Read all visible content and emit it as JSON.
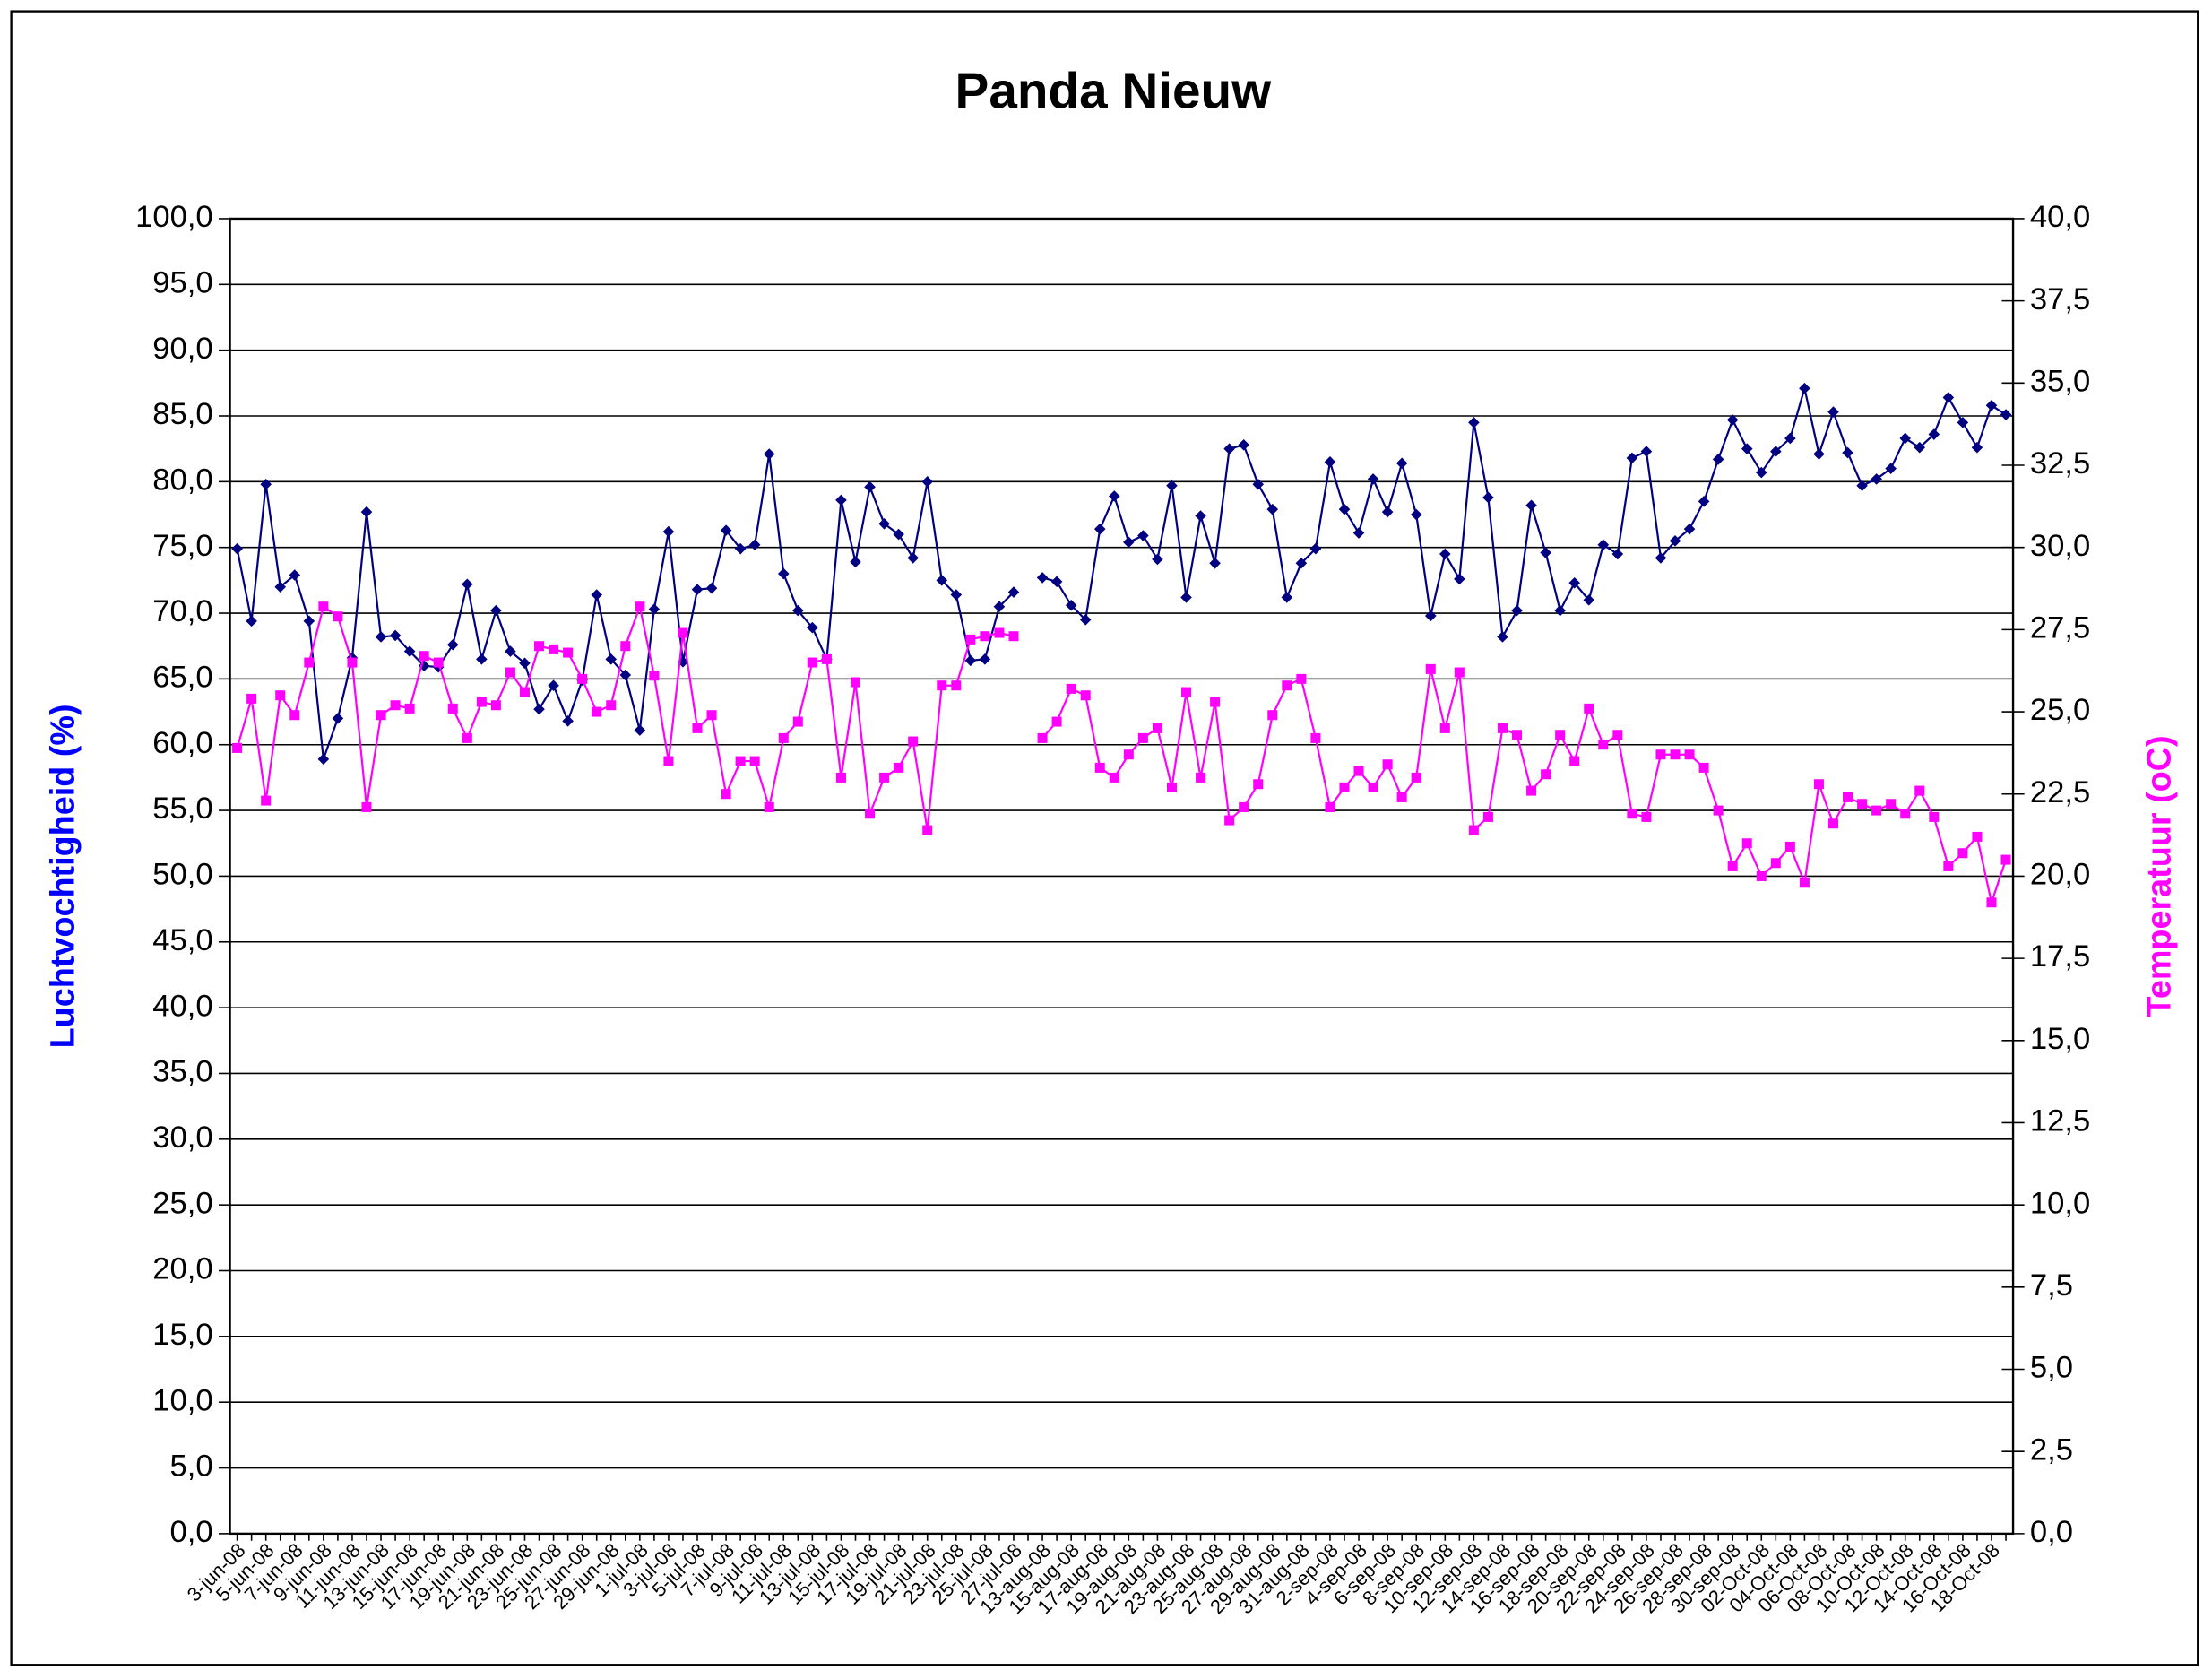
{
  "chart_data": {
    "type": "line",
    "title": "Panda Nieuw",
    "y_label": "Luchtvochtigheid (%)",
    "y2_label": "Temperatuur (oC)",
    "categories": [
      "3-jun-08",
      null,
      "5-jun-08",
      null,
      "7-jun-08",
      null,
      "9-jun-08",
      null,
      "11-jun-08",
      null,
      "13-jun-08",
      null,
      "15-jun-08",
      null,
      "17-jun-08",
      null,
      "19-jun-08",
      null,
      "21-jun-08",
      null,
      "23-jun-08",
      null,
      "25-jun-08",
      null,
      "27-jun-08",
      null,
      "29-jun-08",
      null,
      "1-jul-08",
      null,
      "3-jul-08",
      null,
      "5-jul-08",
      null,
      "7-jul-08",
      null,
      "9-jul-08",
      null,
      "11-jul-08",
      null,
      "13-jul-08",
      null,
      "15-jul-08",
      null,
      "17-jul-08",
      null,
      "19-jul-08",
      null,
      "21-jul-08",
      null,
      "23-jul-08",
      null,
      "25-jul-08",
      null,
      "27-jul-08",
      null,
      "13-aug-08",
      null,
      "15-aug-08",
      null,
      "17-aug-08",
      null,
      "19-aug-08",
      null,
      "21-aug-08",
      null,
      "23-aug-08",
      null,
      "25-aug-08",
      null,
      "27-aug-08",
      null,
      "29-aug-08",
      null,
      "31-aug-08",
      null,
      "2-sep-08",
      null,
      "4-sep-08",
      null,
      "6-sep-08",
      null,
      "8-sep-08",
      null,
      "10-sep-08",
      null,
      "12-sep-08",
      null,
      "14-sep-08",
      null,
      "16-sep-08",
      null,
      "18-sep-08",
      null,
      "20-sep-08",
      null,
      "22-sep-08",
      null,
      "24-sep-08",
      null,
      "26-sep-08",
      null,
      "28-sep-08",
      null,
      "30-sep-08",
      null,
      "02-Oct-08",
      null,
      "04-Oct-08",
      null,
      "06-Oct-08",
      null,
      "08-Oct-08",
      null,
      "10-Oct-08",
      null,
      "12-Oct-08",
      null,
      "14-Oct-08",
      null,
      "16-Oct-08",
      null,
      "18-Oct-08",
      null
    ],
    "series": [
      {
        "color": "#000080",
        "marker": "diamond",
        "values": [
          74.9,
          69.4,
          79.8,
          72.0,
          72.9,
          69.4,
          58.9,
          62.0,
          66.6,
          77.7,
          68.2,
          68.3,
          67.1,
          66.0,
          65.9,
          67.6,
          72.2,
          66.5,
          70.2,
          67.1,
          66.2,
          62.7,
          64.5,
          61.8,
          64.9,
          71.4,
          66.5,
          65.3,
          61.1,
          70.3,
          76.2,
          66.3,
          71.8,
          71.9,
          76.3,
          74.9,
          75.2,
          82.1,
          73.0,
          70.2,
          68.9,
          66.5,
          78.6,
          73.9,
          79.6,
          76.8,
          76.0,
          74.2,
          80.0,
          72.5,
          71.4,
          66.4,
          66.5,
          70.5,
          71.6,
          null,
          72.7,
          72.4,
          70.6,
          69.5,
          76.4,
          78.9,
          75.4,
          75.9,
          74.1,
          79.7,
          71.2,
          77.4,
          73.8,
          82.5,
          82.8,
          79.8,
          77.9,
          71.2,
          73.8,
          74.9,
          81.5,
          77.9,
          76.1,
          80.2,
          77.7,
          81.4,
          77.5,
          69.8,
          74.5,
          72.6,
          84.5,
          78.8,
          68.2,
          70.2,
          78.2,
          74.6,
          70.2,
          72.3,
          71.0,
          75.2,
          74.5,
          81.8,
          82.3,
          74.2,
          75.5,
          76.4,
          78.5,
          81.7,
          84.7,
          82.5,
          80.7,
          82.3,
          83.3,
          87.1,
          82.1,
          85.3,
          82.2,
          79.7,
          80.2,
          81.0,
          83.3,
          82.6,
          83.6,
          86.4,
          84.5,
          82.6,
          85.8,
          85.1
        ]
      },
      {
        "color": "#ff00ff",
        "marker": "square",
        "axis": "y2",
        "values": [
          23.9,
          25.4,
          22.3,
          25.5,
          24.9,
          26.5,
          28.2,
          27.9,
          26.5,
          22.1,
          24.9,
          25.2,
          25.1,
          26.7,
          26.5,
          25.1,
          24.2,
          25.3,
          25.2,
          26.2,
          25.6,
          27.0,
          26.9,
          26.8,
          26.0,
          25.0,
          25.2,
          27.0,
          28.2,
          26.1,
          23.5,
          27.4,
          24.5,
          24.9,
          22.5,
          23.5,
          23.5,
          22.1,
          24.2,
          24.7,
          26.5,
          26.6,
          23.0,
          25.9,
          21.9,
          23.0,
          23.3,
          24.1,
          21.4,
          25.8,
          25.8,
          27.2,
          27.3,
          27.4,
          27.3,
          null,
          24.2,
          24.7,
          25.7,
          25.5,
          23.3,
          23.0,
          23.7,
          24.2,
          24.5,
          22.7,
          25.6,
          23.0,
          25.3,
          21.7,
          22.1,
          22.8,
          24.9,
          25.8,
          26.0,
          24.2,
          22.1,
          22.7,
          23.2,
          22.7,
          23.4,
          22.4,
          23.0,
          26.3,
          24.5,
          26.2,
          21.4,
          21.8,
          24.5,
          24.3,
          22.6,
          23.1,
          24.3,
          23.5,
          25.1,
          24.0,
          24.3,
          21.9,
          21.8,
          23.7,
          23.7,
          23.7,
          23.3,
          22.0,
          20.3,
          21.0,
          20.0,
          20.4,
          20.9,
          19.8,
          22.8,
          21.6,
          22.4,
          22.2,
          22.0,
          22.2,
          21.9,
          22.6,
          21.8,
          20.3,
          20.7,
          21.2,
          19.2,
          20.5
        ]
      }
    ],
    "ylim": [
      0,
      100
    ],
    "yticks": [
      {
        "value": 0,
        "label": "0,0"
      },
      {
        "value": 5,
        "label": "5,0"
      },
      {
        "value": 10,
        "label": "10,0"
      },
      {
        "value": 15,
        "label": "15,0"
      },
      {
        "value": 20,
        "label": "20,0"
      },
      {
        "value": 25,
        "label": "25,0"
      },
      {
        "value": 30,
        "label": "30,0"
      },
      {
        "value": 35,
        "label": "35,0"
      },
      {
        "value": 40,
        "label": "40,0"
      },
      {
        "value": 45,
        "label": "45,0"
      },
      {
        "value": 50,
        "label": "50,0"
      },
      {
        "value": 55,
        "label": "55,0"
      },
      {
        "value": 60,
        "label": "60,0"
      },
      {
        "value": 65,
        "label": "65,0"
      },
      {
        "value": 70,
        "label": "70,0"
      },
      {
        "value": 75,
        "label": "75,0"
      },
      {
        "value": 80,
        "label": "80,0"
      },
      {
        "value": 85,
        "label": "85,0"
      },
      {
        "value": 90,
        "label": "90,0"
      },
      {
        "value": 95,
        "label": "95,0"
      },
      {
        "value": 100,
        "label": "100,0"
      }
    ],
    "y2lim": [
      0,
      40
    ],
    "y2ticks": [
      {
        "value": 0,
        "label": "0,0"
      },
      {
        "value": 2.5,
        "label": "2,5"
      },
      {
        "value": 5,
        "label": "5,0"
      },
      {
        "value": 7.5,
        "label": "7,5"
      },
      {
        "value": 10,
        "label": "10,0"
      },
      {
        "value": 12.5,
        "label": "12,5"
      },
      {
        "value": 15,
        "label": "15,0"
      },
      {
        "value": 17.5,
        "label": "17,5"
      },
      {
        "value": 20,
        "label": "20,0"
      },
      {
        "value": 22.5,
        "label": "22,5"
      },
      {
        "value": 25,
        "label": "25,0"
      },
      {
        "value": 27.5,
        "label": "27,5"
      },
      {
        "value": 30,
        "label": "30,0"
      },
      {
        "value": 32.5,
        "label": "32,5"
      },
      {
        "value": 35,
        "label": "35,0"
      },
      {
        "value": 37.5,
        "label": "37,5"
      },
      {
        "value": 40,
        "label": "40,0"
      }
    ],
    "grid": true,
    "y_label_color": "#0000ff",
    "y2_label_color": "#ff00ff"
  }
}
